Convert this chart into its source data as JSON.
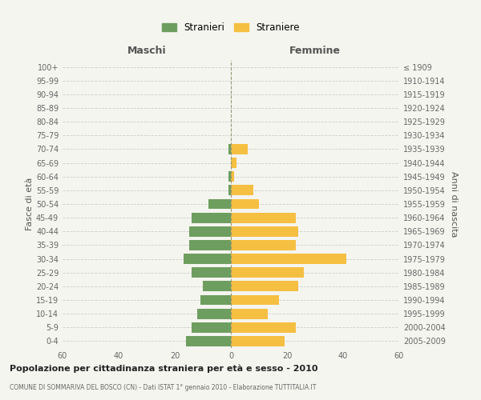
{
  "age_groups": [
    "0-4",
    "5-9",
    "10-14",
    "15-19",
    "20-24",
    "25-29",
    "30-34",
    "35-39",
    "40-44",
    "45-49",
    "50-54",
    "55-59",
    "60-64",
    "65-69",
    "70-74",
    "75-79",
    "80-84",
    "85-89",
    "90-94",
    "95-99",
    "100+"
  ],
  "birth_years": [
    "2005-2009",
    "2000-2004",
    "1995-1999",
    "1990-1994",
    "1985-1989",
    "1980-1984",
    "1975-1979",
    "1970-1974",
    "1965-1969",
    "1960-1964",
    "1955-1959",
    "1950-1954",
    "1945-1949",
    "1940-1944",
    "1935-1939",
    "1930-1934",
    "1925-1929",
    "1920-1924",
    "1915-1919",
    "1910-1914",
    "≤ 1909"
  ],
  "maschi": [
    16,
    14,
    12,
    11,
    10,
    14,
    17,
    15,
    15,
    14,
    8,
    1,
    1,
    0,
    1,
    0,
    0,
    0,
    0,
    0,
    0
  ],
  "femmine": [
    19,
    23,
    13,
    17,
    24,
    26,
    41,
    23,
    24,
    23,
    10,
    8,
    1,
    2,
    6,
    0,
    0,
    0,
    0,
    0,
    0
  ],
  "color_maschi": "#6e9e5f",
  "color_femmine": "#f5bf42",
  "title": "Popolazione per cittadinanza straniera per età e sesso - 2010",
  "subtitle": "COMUNE DI SOMMARIVA DEL BOSCO (CN) - Dati ISTAT 1° gennaio 2010 - Elaborazione TUTTITALIA.IT",
  "xlabel_left": "Maschi",
  "xlabel_right": "Femmine",
  "ylabel_left": "Fasce di età",
  "ylabel_right": "Anni di nascita",
  "legend_maschi": "Stranieri",
  "legend_femmine": "Straniere",
  "xlim": 60,
  "background_color": "#f5f5f0",
  "grid_color": "#cccccc"
}
